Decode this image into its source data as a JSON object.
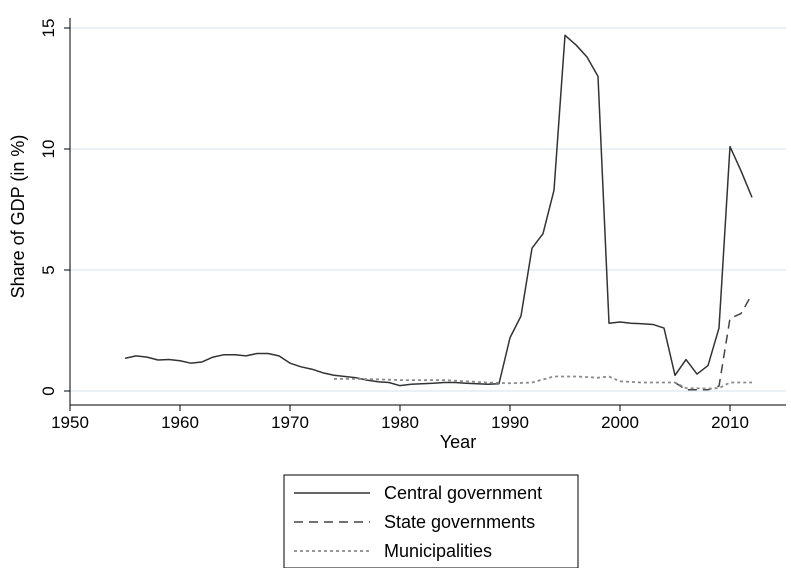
{
  "chart_data": {
    "type": "line",
    "xlabel": "Year",
    "ylabel": "Share of GDP (in %)",
    "xlim": [
      1950,
      2012
    ],
    "ylim": [
      0,
      15
    ],
    "x_ticks": [
      1950,
      1960,
      1970,
      1980,
      1990,
      2000,
      2010
    ],
    "y_ticks": [
      0,
      5,
      10,
      15
    ],
    "x_tick_labels": [
      "1950",
      "1960",
      "1970",
      "1980",
      "1990",
      "2000",
      "2010"
    ],
    "y_tick_labels": [
      "0",
      "5",
      "10",
      "15"
    ],
    "grid": "horizontal",
    "legend_position": "bottom",
    "series": [
      {
        "name": "Central government",
        "style": "solid",
        "color": "#333333",
        "points": [
          [
            1955,
            1.35
          ],
          [
            1956,
            1.45
          ],
          [
            1957,
            1.4
          ],
          [
            1958,
            1.28
          ],
          [
            1959,
            1.3
          ],
          [
            1960,
            1.25
          ],
          [
            1961,
            1.15
          ],
          [
            1962,
            1.2
          ],
          [
            1963,
            1.4
          ],
          [
            1964,
            1.5
          ],
          [
            1965,
            1.5
          ],
          [
            1966,
            1.45
          ],
          [
            1967,
            1.55
          ],
          [
            1968,
            1.55
          ],
          [
            1969,
            1.45
          ],
          [
            1970,
            1.15
          ],
          [
            1971,
            1.0
          ],
          [
            1972,
            0.9
          ],
          [
            1973,
            0.75
          ],
          [
            1974,
            0.65
          ],
          [
            1975,
            0.6
          ],
          [
            1976,
            0.55
          ],
          [
            1977,
            0.45
          ],
          [
            1978,
            0.38
          ],
          [
            1979,
            0.35
          ],
          [
            1980,
            0.22
          ],
          [
            1981,
            0.28
          ],
          [
            1982,
            0.3
          ],
          [
            1983,
            0.32
          ],
          [
            1984,
            0.35
          ],
          [
            1985,
            0.35
          ],
          [
            1986,
            0.32
          ],
          [
            1987,
            0.3
          ],
          [
            1988,
            0.28
          ],
          [
            1989,
            0.3
          ],
          [
            1990,
            2.2
          ],
          [
            1991,
            3.1
          ],
          [
            1992,
            5.9
          ],
          [
            1993,
            6.5
          ],
          [
            1994,
            8.3
          ],
          [
            1995,
            14.7
          ],
          [
            1996,
            14.3
          ],
          [
            1997,
            13.8
          ],
          [
            1998,
            13.0
          ],
          [
            1999,
            2.8
          ],
          [
            2000,
            2.85
          ],
          [
            2001,
            2.8
          ],
          [
            2002,
            2.78
          ],
          [
            2003,
            2.75
          ],
          [
            2004,
            2.6
          ],
          [
            2005,
            0.65
          ],
          [
            2006,
            1.3
          ],
          [
            2007,
            0.7
          ],
          [
            2008,
            1.05
          ],
          [
            2009,
            2.6
          ],
          [
            2010,
            10.1
          ],
          [
            2011,
            9.1
          ],
          [
            2012,
            8.0
          ]
        ]
      },
      {
        "name": "State governments",
        "style": "dashed",
        "color": "#444444",
        "points": [
          [
            2005,
            0.35
          ],
          [
            2006,
            0.05
          ],
          [
            2007,
            0.05
          ],
          [
            2008,
            0.05
          ],
          [
            2009,
            0.2
          ],
          [
            2010,
            3.0
          ],
          [
            2011,
            3.2
          ],
          [
            2012,
            4.0
          ]
        ]
      },
      {
        "name": "Municipalities",
        "style": "dotted",
        "color": "#8a8a8a",
        "points": [
          [
            1974,
            0.5
          ],
          [
            1976,
            0.5
          ],
          [
            1978,
            0.48
          ],
          [
            1980,
            0.45
          ],
          [
            1982,
            0.45
          ],
          [
            1984,
            0.45
          ],
          [
            1986,
            0.4
          ],
          [
            1988,
            0.35
          ],
          [
            1990,
            0.32
          ],
          [
            1992,
            0.35
          ],
          [
            1994,
            0.6
          ],
          [
            1996,
            0.6
          ],
          [
            1998,
            0.55
          ],
          [
            1999,
            0.6
          ],
          [
            2000,
            0.4
          ],
          [
            2002,
            0.35
          ],
          [
            2004,
            0.35
          ],
          [
            2005,
            0.35
          ],
          [
            2006,
            0.12
          ],
          [
            2008,
            0.1
          ],
          [
            2009,
            0.12
          ],
          [
            2010,
            0.35
          ],
          [
            2012,
            0.35
          ]
        ]
      }
    ]
  }
}
